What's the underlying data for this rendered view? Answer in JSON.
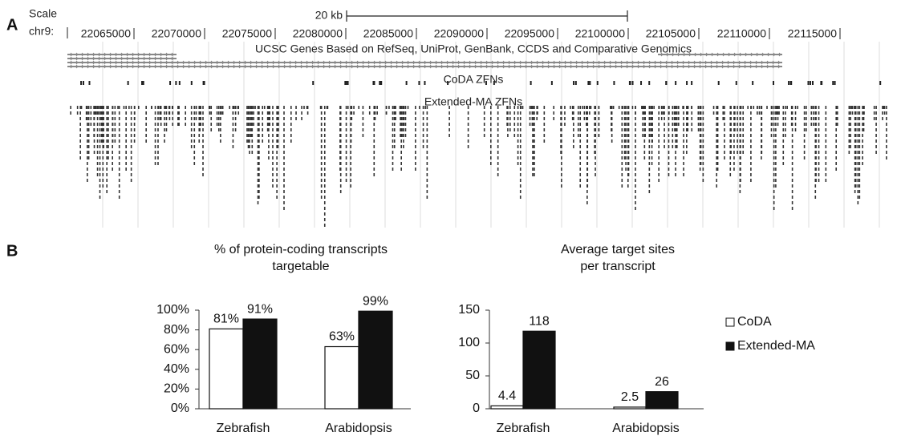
{
  "panel_labels": [
    "A",
    "B"
  ],
  "browser": {
    "scale_label": "Scale",
    "scale_bar": "20 kb",
    "chrom": "chr9:",
    "positions": [
      "22065000",
      "22070000",
      "22075000",
      "22080000",
      "22085000",
      "22090000",
      "22095000",
      "22100000",
      "22105000",
      "22110000",
      "22115000"
    ],
    "tracks": [
      "UCSC Genes Based on RefSeq, UniProt, GenBank, CCDS and Comparative Genomics",
      "CoDA ZFNs",
      "Extended-MA ZFNs"
    ]
  },
  "chart_data": [
    {
      "type": "bar",
      "title": [
        "% of protein-coding transcripts",
        "targetable"
      ],
      "categories": [
        "Zebrafish",
        "Arabidopsis"
      ],
      "series": [
        {
          "color": "#ffffff",
          "values": [
            81,
            63
          ],
          "value_labels": [
            "81%",
            "63%"
          ]
        },
        {
          "color": "#111111",
          "values": [
            91,
            99
          ],
          "value_labels": [
            "91%",
            "99%"
          ]
        }
      ],
      "ylim": [
        0,
        100
      ],
      "yticks": [
        {
          "value": 0,
          "label": "0%"
        },
        {
          "value": 20,
          "label": "20%"
        },
        {
          "value": 40,
          "label": "40%"
        },
        {
          "value": 60,
          "label": "60%"
        },
        {
          "value": 80,
          "label": "80%"
        },
        {
          "value": 100,
          "label": "100%"
        }
      ]
    },
    {
      "type": "bar",
      "title": [
        "Average target sites",
        "per transcript"
      ],
      "categories": [
        "Zebrafish",
        "Arabidopsis"
      ],
      "series": [
        {
          "name": "CoDA",
          "color": "#ffffff",
          "values": [
            4.4,
            2.5
          ]
        },
        {
          "name": "Extended-MA",
          "color": "#111111",
          "values": [
            118,
            26
          ]
        }
      ],
      "ylim": [
        0,
        150
      ],
      "yticks": [
        0,
        50,
        100,
        150
      ],
      "legend": "right"
    }
  ]
}
